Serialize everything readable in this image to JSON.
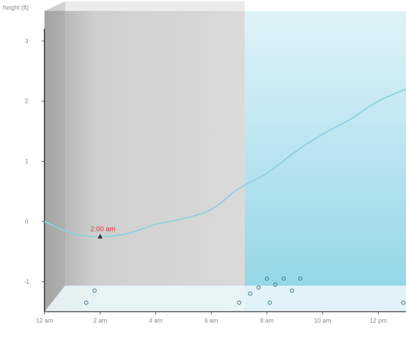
{
  "chart_data": {
    "type": "area",
    "title": "",
    "ylabel": "height (ft)",
    "xlabel": "",
    "ylim": [
      -1.5,
      3.5
    ],
    "xlim": [
      0,
      13
    ],
    "grid": false,
    "yticks": [
      3,
      2,
      1,
      0,
      -1
    ],
    "xticks": [
      {
        "x": 0,
        "label": "12 am"
      },
      {
        "x": 2,
        "label": "2 am"
      },
      {
        "x": 4,
        "label": "4 am"
      },
      {
        "x": 6,
        "label": "6 am"
      },
      {
        "x": 8,
        "label": "8 am"
      },
      {
        "x": 10,
        "label": "10 am"
      },
      {
        "x": 12,
        "label": "12 pm"
      }
    ],
    "top_label": "",
    "series": [
      {
        "x": [
          0,
          1,
          2,
          3,
          4,
          5,
          6,
          7,
          8,
          9,
          10,
          11,
          12,
          13
        ],
        "values": [
          0.0,
          -0.2,
          -0.25,
          -0.2,
          -0.05,
          0.05,
          0.2,
          0.55,
          0.8,
          1.15,
          1.45,
          1.7,
          2.0,
          2.2
        ]
      }
    ],
    "shaded_regions": [
      {
        "x0": 0,
        "x1": 7.2,
        "color": "#d4d4d4"
      },
      {
        "x0": 7.2,
        "x1": 13,
        "color": "#bfe6f0"
      }
    ],
    "annotations": [
      {
        "x": 2.0,
        "y": -0.25,
        "label": "2:00 am",
        "color": "#e0303a"
      }
    ],
    "markers": [
      {
        "x": 1.5,
        "y": -1.35
      },
      {
        "x": 1.8,
        "y": -1.15
      },
      {
        "x": 7.0,
        "y": -1.35
      },
      {
        "x": 7.4,
        "y": -1.2
      },
      {
        "x": 7.7,
        "y": -1.1
      },
      {
        "x": 8.0,
        "y": -0.95
      },
      {
        "x": 8.3,
        "y": -1.05
      },
      {
        "x": 8.6,
        "y": -0.95
      },
      {
        "x": 8.9,
        "y": -1.15
      },
      {
        "x": 9.2,
        "y": -0.95
      },
      {
        "x": 8.1,
        "y": -1.35
      },
      {
        "x": 12.9,
        "y": -1.35
      }
    ],
    "colors": {
      "line": "#8fcfe0",
      "axis": "#555555",
      "floor": "#eaf6fa",
      "marker": "#3a6f86"
    }
  }
}
